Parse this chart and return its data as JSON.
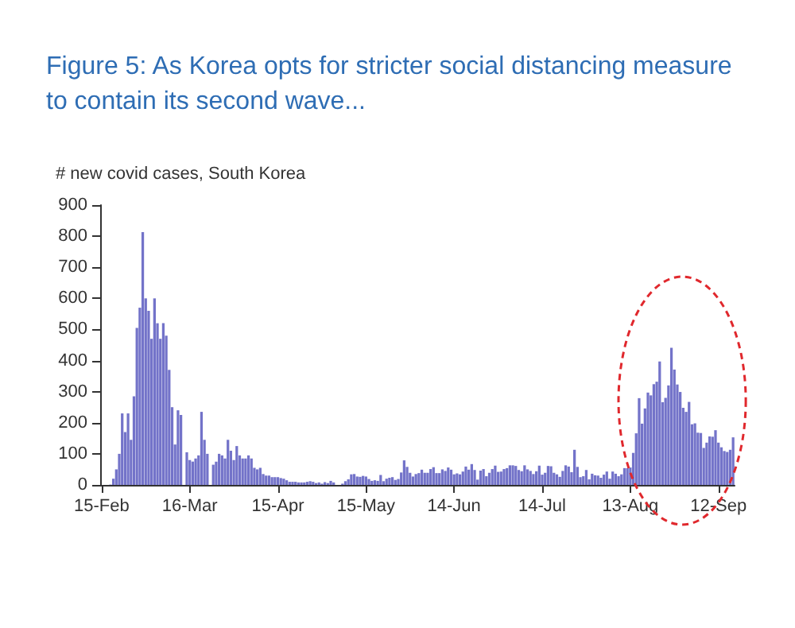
{
  "chart_data": {
    "type": "bar",
    "title": "Figure 5: As Korea opts for stricter social distancing measure to contain its second wave...",
    "ylabel": "# new covid cases, South Korea",
    "categories": [
      "15-Feb",
      null,
      null,
      null,
      null,
      null,
      null,
      null,
      null,
      null,
      null,
      null,
      null,
      null,
      null,
      null,
      null,
      null,
      null,
      null,
      null,
      null,
      null,
      null,
      null,
      null,
      null,
      null,
      null,
      null,
      "16-Mar",
      null,
      null,
      null,
      null,
      null,
      null,
      null,
      null,
      null,
      null,
      null,
      null,
      null,
      null,
      null,
      null,
      null,
      null,
      null,
      null,
      null,
      null,
      null,
      null,
      null,
      null,
      null,
      null,
      null,
      "15-Apr",
      null,
      null,
      null,
      null,
      null,
      null,
      null,
      null,
      null,
      null,
      null,
      null,
      null,
      null,
      null,
      null,
      null,
      null,
      null,
      null,
      null,
      null,
      null,
      null,
      null,
      null,
      null,
      null,
      null,
      "15-May",
      null,
      null,
      null,
      null,
      null,
      null,
      null,
      null,
      null,
      null,
      null,
      null,
      null,
      null,
      null,
      null,
      null,
      null,
      null,
      null,
      null,
      null,
      null,
      null,
      null,
      null,
      null,
      null,
      null,
      "14-Jun",
      null,
      null,
      null,
      null,
      null,
      null,
      null,
      null,
      null,
      null,
      null,
      null,
      null,
      null,
      null,
      null,
      null,
      null,
      null,
      null,
      null,
      null,
      null,
      null,
      null,
      null,
      null,
      null,
      null,
      "14-Jul",
      null,
      null,
      null,
      null,
      null,
      null,
      null,
      null,
      null,
      null,
      null,
      null,
      null,
      null,
      null,
      null,
      null,
      null,
      null,
      null,
      null,
      null,
      null,
      null,
      null,
      null,
      null,
      null,
      null,
      "13-Aug",
      null,
      null,
      null,
      null,
      null,
      null,
      null,
      null,
      null,
      null,
      null,
      null,
      null,
      null,
      null,
      null,
      null,
      null,
      null,
      null,
      null,
      null,
      null,
      null,
      null,
      null,
      null,
      null,
      null,
      "12-Sep",
      null,
      null,
      null,
      null,
      null
    ],
    "values": [
      0,
      0,
      0,
      1,
      20,
      50,
      100,
      230,
      170,
      230,
      145,
      285,
      505,
      570,
      813,
      600,
      560,
      470,
      600,
      520,
      470,
      520,
      480,
      370,
      250,
      130,
      240,
      225,
      null,
      105,
      80,
      75,
      85,
      95,
      235,
      145,
      100,
      null,
      65,
      75,
      100,
      95,
      85,
      145,
      110,
      80,
      125,
      95,
      85,
      85,
      95,
      85,
      55,
      50,
      55,
      35,
      30,
      30,
      25,
      25,
      25,
      22,
      20,
      15,
      10,
      10,
      10,
      8,
      8,
      8,
      10,
      12,
      10,
      6,
      8,
      4,
      9,
      6,
      13,
      8,
      null,
      null,
      4,
      12,
      18,
      34,
      35,
      27,
      26,
      29,
      27,
      19,
      13,
      15,
      13,
      32,
      12,
      20,
      23,
      25,
      16,
      19,
      40,
      79,
      58,
      39,
      27,
      35,
      38,
      49,
      39,
      39,
      51,
      57,
      38,
      38,
      50,
      45,
      56,
      49,
      34,
      37,
      34,
      43,
      59,
      49,
      67,
      48,
      17,
      46,
      51,
      28,
      39,
      51,
      62,
      42,
      43,
      51,
      54,
      63,
      63,
      61,
      48,
      44,
      63,
      50,
      45,
      35,
      44,
      62,
      33,
      39,
      61,
      60,
      39,
      34,
      26,
      45,
      63,
      59,
      41,
      113,
      58,
      25,
      28,
      48,
      18,
      36,
      31,
      30,
      23,
      33,
      43,
      20,
      43,
      36,
      28,
      34,
      54,
      54,
      56,
      103,
      166,
      279,
      197,
      246,
      297,
      288,
      324,
      332,
      397,
      266,
      280,
      320,
      441,
      371,
      323,
      299,
      248,
      235,
      267,
      195,
      198,
      168,
      167,
      119,
      136,
      156,
      155,
      176,
      136,
      121,
      109,
      106,
      113,
      153
    ],
    "color": "#7373c9",
    "ylim": [
      0,
      900
    ],
    "yticks": [
      0,
      100,
      200,
      300,
      400,
      500,
      600,
      700,
      800,
      900
    ]
  }
}
